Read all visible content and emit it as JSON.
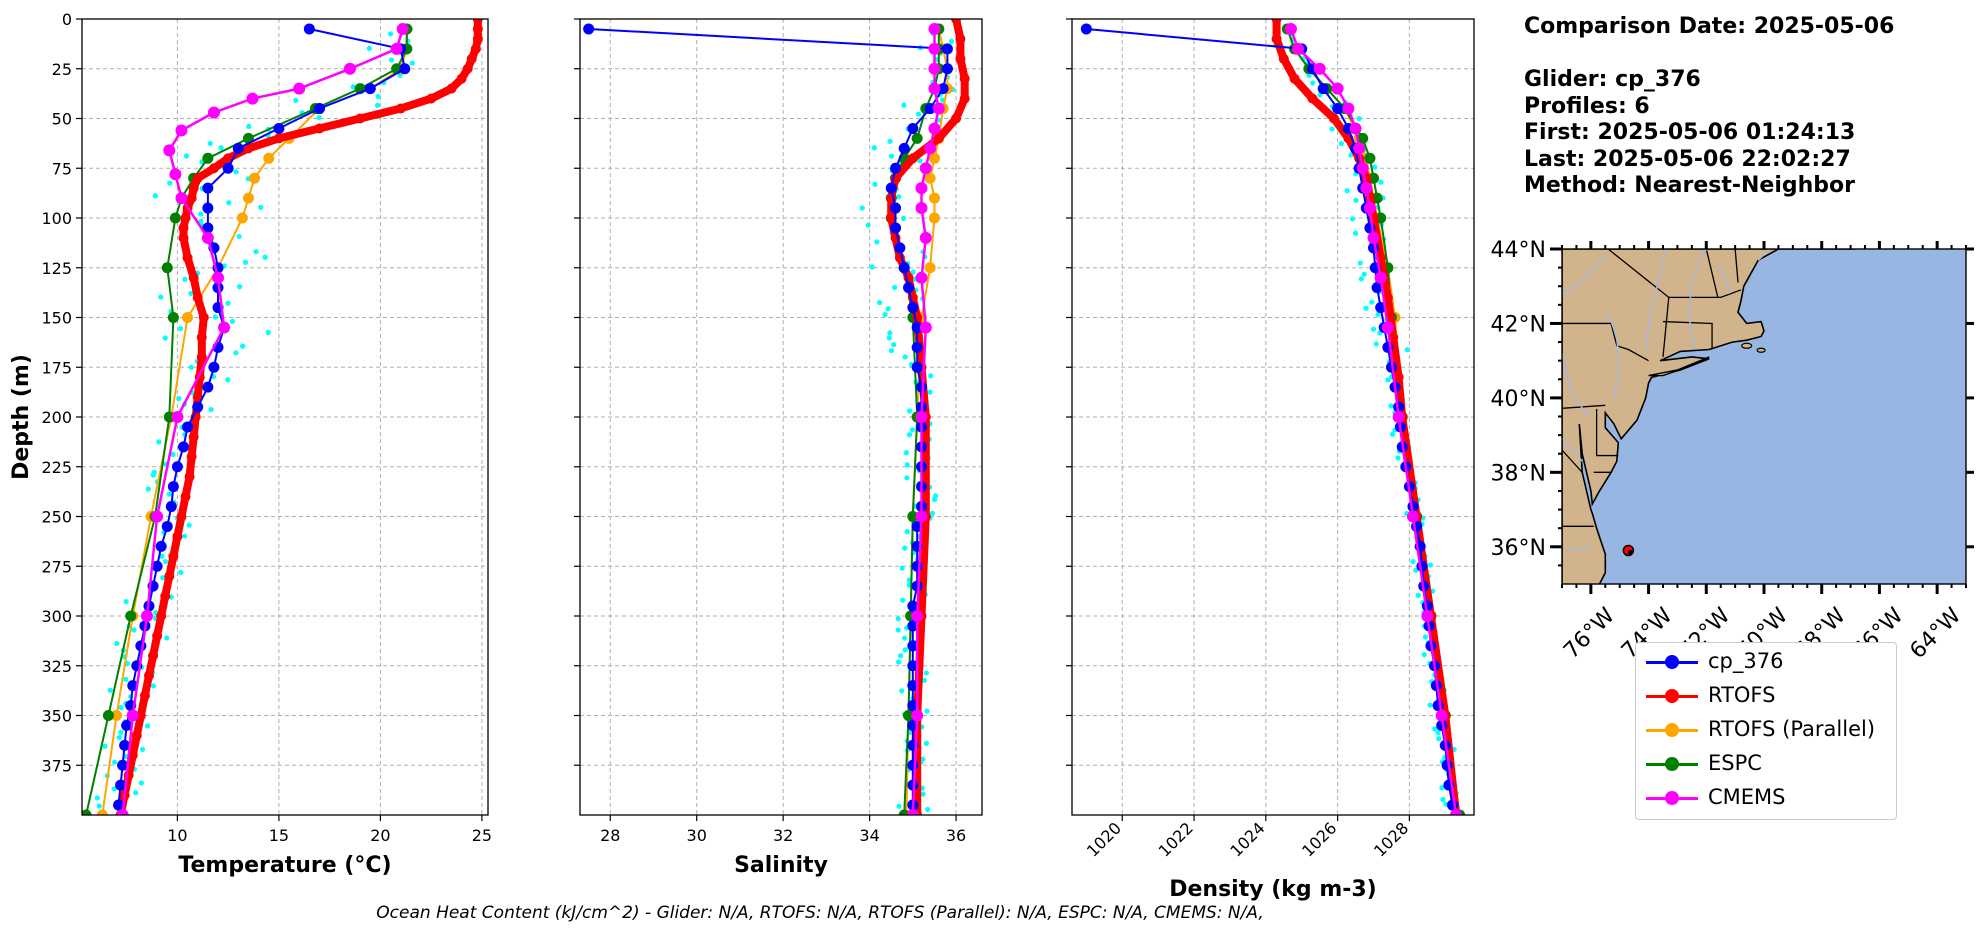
{
  "info": {
    "date_line": "Comparison Date: 2025-05-06",
    "glider_line": "Glider: cp_376",
    "profiles_line": "Profiles: 6",
    "first_line": "First: 2025-05-06 01:24:13",
    "last_line": "Last: 2025-05-06 22:02:27",
    "method_line": "Method: Nearest-Neighbor"
  },
  "caption": "Ocean Heat Content (kJ/cm^2) - Glider: N/A,  RTOFS: N/A,  RTOFS (Parallel): N/A,  ESPC: N/A,  CMEMS: N/A,",
  "colors": {
    "glider": "#0000ff",
    "rtofs": "#ff0000",
    "rtofs_parallel": "#ffa500",
    "espc": "#008000",
    "cmems": "#ff00ff",
    "scatter": "#00ffff",
    "land": "#d2b48c",
    "ocean": "#97b6e1",
    "river": "#a9b8d6",
    "grid": "#b0b0b0"
  },
  "legend": [
    {
      "key": "glider",
      "label": "cp_376"
    },
    {
      "key": "rtofs",
      "label": "RTOFS"
    },
    {
      "key": "rtofs_parallel",
      "label": "RTOFS (Parallel)"
    },
    {
      "key": "espc",
      "label": "ESPC"
    },
    {
      "key": "cmems",
      "label": "CMEMS"
    }
  ],
  "chart_data": [
    {
      "type": "line",
      "xlabel": "Temperature (°C)",
      "ylabel": "Depth (m)",
      "xlim": [
        5.3,
        25.3
      ],
      "ylim": [
        400,
        0
      ],
      "xticks": [
        10,
        15,
        20,
        25
      ],
      "yticks": [
        0,
        25,
        50,
        75,
        100,
        125,
        150,
        175,
        200,
        225,
        250,
        275,
        300,
        325,
        350,
        375
      ],
      "grid": true,
      "series": [
        {
          "key": "glider",
          "name": "cp_376",
          "depth": [
            5,
            15,
            25,
            35,
            45,
            55,
            65,
            75,
            85,
            95,
            105,
            115,
            125,
            135,
            145,
            155,
            165,
            175,
            185,
            195,
            205,
            215,
            225,
            235,
            245,
            255,
            265,
            275,
            285,
            295,
            305,
            315,
            325,
            335,
            345,
            355,
            365,
            375,
            385,
            395
          ],
          "values": [
            16.5,
            21.0,
            21.2,
            19.5,
            17.0,
            15.0,
            13.0,
            12.5,
            11.5,
            11.5,
            11.5,
            11.8,
            12.0,
            12.0,
            12.0,
            12.3,
            12.0,
            11.8,
            11.5,
            11.0,
            10.5,
            10.3,
            10.0,
            9.8,
            9.7,
            9.5,
            9.2,
            9.0,
            8.8,
            8.6,
            8.4,
            8.2,
            8.0,
            7.8,
            7.7,
            7.5,
            7.4,
            7.3,
            7.2,
            7.1
          ],
          "line": true,
          "marker": true
        },
        {
          "key": "rtofs",
          "name": "RTOFS",
          "depth": [
            0,
            5,
            10,
            15,
            20,
            25,
            30,
            35,
            40,
            45,
            50,
            55,
            60,
            65,
            70,
            75,
            80,
            85,
            90,
            95,
            100,
            105,
            110,
            120,
            130,
            140,
            150,
            160,
            170,
            180,
            190,
            200,
            210,
            220,
            230,
            240,
            250,
            260,
            270,
            280,
            290,
            300,
            310,
            320,
            330,
            340,
            350,
            360,
            370,
            380,
            390,
            400
          ],
          "values": [
            24.8,
            24.8,
            24.8,
            24.7,
            24.5,
            24.3,
            24.0,
            23.5,
            22.5,
            21.0,
            19.0,
            17.0,
            15.0,
            13.5,
            12.5,
            11.8,
            11.0,
            10.8,
            10.7,
            10.5,
            10.4,
            10.3,
            10.3,
            10.5,
            10.8,
            11.0,
            11.3,
            11.2,
            11.2,
            11.1,
            11.0,
            10.9,
            10.8,
            10.7,
            10.6,
            10.4,
            10.2,
            10.0,
            9.8,
            9.6,
            9.4,
            9.2,
            9.0,
            8.8,
            8.6,
            8.4,
            8.2,
            8.0,
            7.8,
            7.6,
            7.4,
            7.2
          ],
          "line": true,
          "marker": true
        },
        {
          "key": "rtofs_parallel",
          "name": "RTOFS (Parallel)",
          "depth": [
            5,
            15,
            25,
            35,
            45,
            60,
            70,
            80,
            90,
            100,
            125,
            150,
            200,
            250,
            300,
            350,
            400
          ],
          "values": [
            21.3,
            21.3,
            21.0,
            19.5,
            17.0,
            15.5,
            14.5,
            13.8,
            13.5,
            13.2,
            12.0,
            10.5,
            9.7,
            8.7,
            7.8,
            7.0,
            6.3
          ],
          "line": true,
          "marker": true
        },
        {
          "key": "espc",
          "name": "ESPC",
          "depth": [
            5,
            15,
            25,
            35,
            45,
            60,
            70,
            80,
            90,
            100,
            125,
            150,
            200,
            250,
            300,
            350,
            400
          ],
          "values": [
            21.3,
            21.3,
            20.8,
            19.0,
            16.8,
            13.5,
            11.5,
            10.8,
            10.2,
            9.9,
            9.5,
            9.8,
            9.6,
            8.9,
            7.7,
            6.6,
            5.5
          ],
          "line": true,
          "marker": true
        },
        {
          "key": "cmems",
          "name": "CMEMS",
          "depth": [
            5,
            15,
            25,
            35,
            40,
            47,
            56,
            66,
            78,
            90,
            110,
            130,
            155,
            200,
            250,
            300,
            350,
            400
          ],
          "values": [
            21.1,
            20.8,
            18.5,
            16.0,
            13.7,
            11.8,
            10.2,
            9.6,
            9.9,
            10.2,
            11.5,
            12.0,
            12.3,
            10.0,
            9.0,
            8.5,
            7.8,
            7.3
          ],
          "line": true,
          "marker": true
        }
      ]
    },
    {
      "type": "line",
      "xlabel": "Salinity",
      "ylabel": "",
      "xlim": [
        27.3,
        36.6
      ],
      "ylim": [
        400,
        0
      ],
      "xticks": [
        28,
        30,
        32,
        34,
        36
      ],
      "grid": true,
      "series": [
        {
          "key": "glider",
          "name": "cp_376",
          "depth": [
            5,
            15,
            25,
            35,
            45,
            55,
            65,
            75,
            85,
            95,
            105,
            115,
            125,
            135,
            145,
            155,
            165,
            175,
            185,
            195,
            205,
            215,
            225,
            235,
            245,
            255,
            265,
            275,
            285,
            295,
            305,
            315,
            325,
            335,
            345,
            355,
            365,
            375,
            385,
            395
          ],
          "values": [
            27.5,
            35.8,
            35.8,
            35.7,
            35.4,
            35.0,
            34.8,
            34.6,
            34.5,
            34.6,
            34.6,
            34.7,
            34.8,
            34.9,
            35.0,
            35.1,
            35.1,
            35.1,
            35.2,
            35.2,
            35.2,
            35.2,
            35.2,
            35.2,
            35.2,
            35.1,
            35.1,
            35.1,
            35.1,
            35.0,
            35.0,
            35.0,
            35.0,
            35.0,
            35.0,
            35.0,
            35.0,
            35.0,
            35.0,
            35.0
          ],
          "line": true,
          "marker": true
        },
        {
          "key": "rtofs",
          "name": "RTOFS",
          "depth": [
            0,
            10,
            20,
            30,
            40,
            50,
            60,
            70,
            80,
            90,
            100,
            110,
            120,
            130,
            140,
            150,
            175,
            200,
            250,
            300,
            350,
            400
          ],
          "values": [
            36.0,
            36.1,
            36.1,
            36.2,
            36.2,
            36.0,
            35.6,
            35.0,
            34.6,
            34.5,
            34.5,
            34.6,
            34.7,
            34.9,
            35.0,
            35.1,
            35.2,
            35.3,
            35.3,
            35.2,
            35.1,
            35.1
          ],
          "line": true,
          "marker": true
        },
        {
          "key": "rtofs_parallel",
          "name": "RTOFS (Parallel)",
          "depth": [
            5,
            15,
            25,
            35,
            45,
            60,
            70,
            80,
            90,
            100,
            125,
            150,
            200,
            250,
            300,
            350,
            400
          ],
          "values": [
            35.6,
            35.7,
            35.8,
            35.8,
            35.7,
            35.6,
            35.5,
            35.4,
            35.5,
            35.5,
            35.4,
            35.2,
            35.1,
            35.0,
            34.95,
            34.9,
            34.85
          ],
          "line": true,
          "marker": true
        },
        {
          "key": "espc",
          "name": "ESPC",
          "depth": [
            5,
            15,
            25,
            35,
            45,
            60,
            70,
            80,
            90,
            100,
            125,
            150,
            200,
            250,
            300,
            350,
            400
          ],
          "values": [
            35.6,
            35.6,
            35.6,
            35.5,
            35.3,
            35.1,
            34.8,
            34.6,
            34.5,
            34.5,
            34.8,
            35.0,
            35.1,
            35.0,
            34.95,
            34.9,
            34.8
          ],
          "line": true,
          "marker": true
        },
        {
          "key": "cmems",
          "name": "CMEMS",
          "depth": [
            5,
            15,
            25,
            35,
            45,
            55,
            65,
            75,
            85,
            95,
            110,
            130,
            155,
            200,
            250,
            300,
            350,
            400
          ],
          "values": [
            35.5,
            35.5,
            35.5,
            35.5,
            35.6,
            35.5,
            35.4,
            35.3,
            35.2,
            35.2,
            35.3,
            35.2,
            35.3,
            35.2,
            35.2,
            35.1,
            35.1,
            35.0
          ],
          "line": true,
          "marker": true
        }
      ]
    },
    {
      "type": "line",
      "xlabel": "Density (kg m-3)",
      "ylabel": "",
      "xlim": [
        1018.6,
        1029.8
      ],
      "ylim": [
        400,
        0
      ],
      "xticks": [
        1020,
        1022,
        1024,
        1026,
        1028
      ],
      "grid": true,
      "series": [
        {
          "key": "glider",
          "name": "cp_376",
          "depth": [
            5,
            15,
            25,
            35,
            45,
            55,
            65,
            75,
            85,
            95,
            105,
            115,
            125,
            135,
            145,
            155,
            165,
            175,
            185,
            195,
            205,
            215,
            225,
            235,
            245,
            255,
            265,
            275,
            285,
            295,
            305,
            315,
            325,
            335,
            345,
            355,
            365,
            375,
            385,
            395
          ],
          "values": [
            1019.0,
            1025.0,
            1025.3,
            1025.6,
            1026.0,
            1026.3,
            1026.5,
            1026.6,
            1026.7,
            1026.8,
            1026.9,
            1027.0,
            1027.05,
            1027.1,
            1027.2,
            1027.3,
            1027.4,
            1027.5,
            1027.6,
            1027.7,
            1027.75,
            1027.8,
            1027.9,
            1028.0,
            1028.1,
            1028.2,
            1028.3,
            1028.35,
            1028.4,
            1028.5,
            1028.55,
            1028.6,
            1028.7,
            1028.75,
            1028.8,
            1028.9,
            1029.0,
            1029.05,
            1029.1,
            1029.2
          ],
          "line": true,
          "marker": true
        },
        {
          "key": "rtofs",
          "name": "RTOFS",
          "depth": [
            0,
            10,
            20,
            30,
            40,
            50,
            60,
            70,
            80,
            90,
            100,
            120,
            140,
            160,
            180,
            200,
            250,
            300,
            350,
            400
          ],
          "values": [
            1024.3,
            1024.3,
            1024.5,
            1024.8,
            1025.3,
            1025.9,
            1026.3,
            1026.6,
            1026.8,
            1026.9,
            1027.0,
            1027.2,
            1027.4,
            1027.55,
            1027.7,
            1027.8,
            1028.2,
            1028.6,
            1029.0,
            1029.3
          ],
          "line": true,
          "marker": true
        },
        {
          "key": "rtofs_parallel",
          "name": "RTOFS (Parallel)",
          "depth": [
            5,
            15,
            25,
            35,
            45,
            60,
            70,
            80,
            90,
            100,
            125,
            150,
            200,
            250,
            300,
            350,
            400
          ],
          "values": [
            1024.6,
            1024.8,
            1025.2,
            1025.7,
            1026.2,
            1026.6,
            1026.8,
            1026.9,
            1027.0,
            1027.1,
            1027.4,
            1027.6,
            1027.8,
            1028.2,
            1028.6,
            1029.0,
            1029.3
          ],
          "line": true,
          "marker": true
        },
        {
          "key": "espc",
          "name": "ESPC",
          "depth": [
            5,
            15,
            25,
            35,
            45,
            60,
            70,
            80,
            90,
            100,
            125,
            150,
            200,
            250,
            300,
            350,
            400
          ],
          "values": [
            1024.6,
            1024.8,
            1025.2,
            1025.7,
            1026.2,
            1026.7,
            1026.9,
            1027.0,
            1027.1,
            1027.2,
            1027.4,
            1027.5,
            1027.8,
            1028.2,
            1028.6,
            1029.0,
            1029.4
          ],
          "line": true,
          "marker": true
        },
        {
          "key": "cmems",
          "name": "CMEMS",
          "depth": [
            5,
            15,
            25,
            35,
            45,
            55,
            65,
            75,
            85,
            95,
            110,
            130,
            155,
            200,
            250,
            300,
            350,
            400
          ],
          "values": [
            1024.7,
            1024.9,
            1025.5,
            1026.0,
            1026.3,
            1026.5,
            1026.6,
            1026.7,
            1026.8,
            1026.9,
            1027.0,
            1027.2,
            1027.4,
            1027.7,
            1028.1,
            1028.5,
            1028.9,
            1029.3
          ],
          "line": true,
          "marker": true
        }
      ]
    }
  ],
  "map": {
    "lon_range": [
      -77,
      -63
    ],
    "lat_range": [
      35,
      44
    ],
    "lon_ticks": [
      -76,
      -74,
      -72,
      -70,
      -68,
      -66,
      -64
    ],
    "lon_tick_labels": [
      "76°W",
      "74°W",
      "72°W",
      "70°W",
      "68°W",
      "66°W",
      "64°W"
    ],
    "lat_ticks": [
      36,
      38,
      40,
      42,
      44
    ],
    "lat_tick_labels": [
      "36°N",
      "38°N",
      "40°N",
      "42°N",
      "44°N"
    ],
    "glider_position": {
      "lon": -74.7,
      "lat": 35.9
    }
  }
}
